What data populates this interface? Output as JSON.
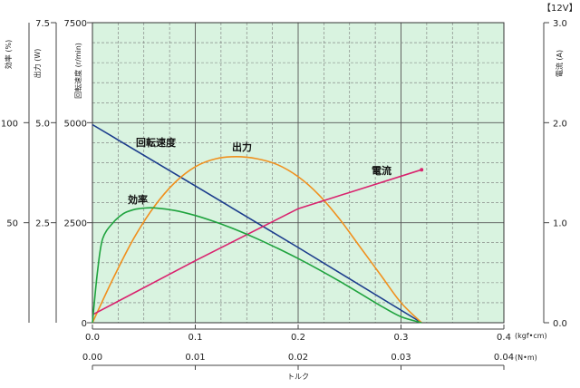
{
  "chart_data": {
    "type": "line",
    "x_torque_kgfcm": {
      "ticks": [
        "0.0",
        "0.1",
        "0.2",
        "0.3",
        "0.4"
      ],
      "unit": "(kgf•cm)",
      "range": [
        0,
        0.4
      ]
    },
    "x_torque_nm": {
      "ticks": [
        "0.00",
        "0.01",
        "0.02",
        "0.03",
        "0.04"
      ],
      "unit": "(N•m)",
      "range": [
        0,
        0.04
      ]
    },
    "xlabel": "トルク",
    "y_speed": {
      "label": "回転速度 (r/min)",
      "ticks": [
        "0",
        "2500",
        "5000",
        "7500"
      ],
      "range": [
        0,
        7500
      ]
    },
    "y_output": {
      "label": "出力 (W)",
      "ticks": [
        "2.5",
        "5.0",
        "7.5"
      ],
      "range": [
        0,
        7.5
      ]
    },
    "y_efficiency": {
      "label": "効率 (%)",
      "ticks": [
        "50",
        "100"
      ],
      "range": [
        0,
        150
      ]
    },
    "y_current": {
      "label": "電流 (A)",
      "ticks": [
        "0.0",
        "1.0",
        "2.0",
        "3.0"
      ],
      "range": [
        0,
        3.0
      ],
      "voltage_tag": "【12V】"
    },
    "grid": true,
    "background": "#d9f3e0",
    "series": [
      {
        "name": "回転速度",
        "axis": "speed",
        "color": "#1b3c8c",
        "points": [
          [
            0,
            4950
          ],
          [
            0.1,
            3420
          ],
          [
            0.2,
            1880
          ],
          [
            0.32,
            0
          ]
        ]
      },
      {
        "name": "出力",
        "axis": "output",
        "color": "#f0901e",
        "points": [
          [
            0,
            0
          ],
          [
            0.02,
            1.1
          ],
          [
            0.04,
            2.1
          ],
          [
            0.06,
            2.9
          ],
          [
            0.08,
            3.5
          ],
          [
            0.1,
            3.9
          ],
          [
            0.12,
            4.1
          ],
          [
            0.14,
            4.15
          ],
          [
            0.16,
            4.1
          ],
          [
            0.18,
            3.95
          ],
          [
            0.2,
            3.65
          ],
          [
            0.22,
            3.2
          ],
          [
            0.24,
            2.6
          ],
          [
            0.26,
            1.9
          ],
          [
            0.28,
            1.2
          ],
          [
            0.3,
            0.5
          ],
          [
            0.32,
            0
          ]
        ]
      },
      {
        "name": "電流",
        "axis": "current",
        "color": "#d9236e",
        "points": [
          [
            0,
            0.08
          ],
          [
            0.1,
            0.62
          ],
          [
            0.2,
            1.14
          ],
          [
            0.32,
            1.53
          ]
        ]
      },
      {
        "name": "効率",
        "axis": "efficiency",
        "color": "#1fa33e",
        "points": [
          [
            0,
            0
          ],
          [
            0.005,
            26
          ],
          [
            0.01,
            42
          ],
          [
            0.02,
            50
          ],
          [
            0.03,
            54.5
          ],
          [
            0.04,
            56.5
          ],
          [
            0.05,
            57.3
          ],
          [
            0.06,
            57.4
          ],
          [
            0.08,
            56.1
          ],
          [
            0.1,
            53.6
          ],
          [
            0.12,
            50.3
          ],
          [
            0.14,
            46.4
          ],
          [
            0.16,
            42
          ],
          [
            0.18,
            37.2
          ],
          [
            0.2,
            32.1
          ],
          [
            0.22,
            26.6
          ],
          [
            0.24,
            20.8
          ],
          [
            0.26,
            14.7
          ],
          [
            0.28,
            8.5
          ],
          [
            0.3,
            3
          ],
          [
            0.32,
            0
          ]
        ]
      }
    ]
  }
}
